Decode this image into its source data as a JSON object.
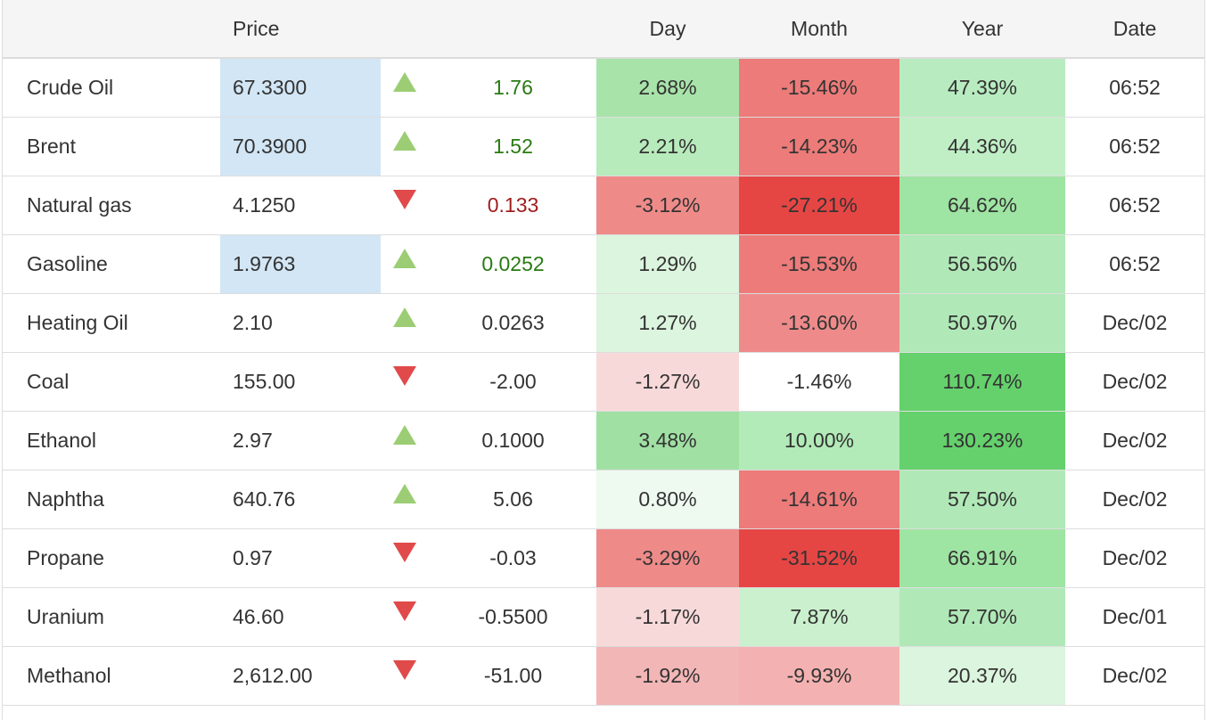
{
  "header": {
    "name": "",
    "price": "Price",
    "arrow": "",
    "change": "",
    "day": "Day",
    "month": "Month",
    "year": "Year",
    "date": "Date"
  },
  "colors": {
    "blue_highlight": "#d2e6f5",
    "up_text": "#2a7a14",
    "down_text": "#a01e1e",
    "up_arrow": "#9ccd74",
    "down_arrow": "#e04a4a"
  },
  "rows": [
    {
      "name": "Crude Oil",
      "price": "67.3300",
      "price_highlight": true,
      "direction": "up",
      "change": "1.76",
      "change_colored": true,
      "day": "2.68%",
      "month": "-15.46%",
      "year": "47.39%",
      "date": "06:52",
      "day_bg": "#a8e3a9",
      "month_bg": "#ec7b79",
      "year_bg": "#b8ecc0"
    },
    {
      "name": "Brent",
      "price": "70.3900",
      "price_highlight": true,
      "direction": "up",
      "change": "1.52",
      "change_colored": true,
      "day": "2.21%",
      "month": "-14.23%",
      "year": "44.36%",
      "date": "06:52",
      "day_bg": "#b8ebbc",
      "month_bg": "#ec7b79",
      "year_bg": "#c0efc6"
    },
    {
      "name": "Natural gas",
      "price": "4.1250",
      "price_highlight": false,
      "direction": "down",
      "change": "0.133",
      "change_colored": true,
      "day": "-3.12%",
      "month": "-27.21%",
      "year": "64.62%",
      "date": "06:52",
      "day_bg": "#ee8b89",
      "month_bg": "#e54644",
      "year_bg": "#9ee4a2"
    },
    {
      "name": "Gasoline",
      "price": "1.9763",
      "price_highlight": true,
      "direction": "up",
      "change": "0.0252",
      "change_colored": true,
      "day": "1.29%",
      "month": "-15.53%",
      "year": "56.56%",
      "date": "06:52",
      "day_bg": "#dcf5de",
      "month_bg": "#ec7b79",
      "year_bg": "#b0e9b7"
    },
    {
      "name": "Heating Oil",
      "price": "2.10",
      "price_highlight": false,
      "direction": "up",
      "change": "0.0263",
      "change_colored": false,
      "day": "1.27%",
      "month": "-13.60%",
      "year": "50.97%",
      "date": "Dec/02",
      "day_bg": "#dcf5de",
      "month_bg": "#ee8b8a",
      "year_bg": "#b0e9b7"
    },
    {
      "name": "Coal",
      "price": "155.00",
      "price_highlight": false,
      "direction": "down",
      "change": "-2.00",
      "change_colored": false,
      "day": "-1.27%",
      "month": "-1.46%",
      "year": "110.74%",
      "date": "Dec/02",
      "day_bg": "#f8d9da",
      "month_bg": "#ffffff",
      "year_bg": "#65d16c"
    },
    {
      "name": "Ethanol",
      "price": "2.97",
      "price_highlight": false,
      "direction": "up",
      "change": "0.1000",
      "change_colored": false,
      "day": "3.48%",
      "month": "10.00%",
      "year": "130.23%",
      "date": "Dec/02",
      "day_bg": "#a0e0a3",
      "month_bg": "#b2eab8",
      "year_bg": "#65d16c"
    },
    {
      "name": "Naphtha",
      "price": "640.76",
      "price_highlight": false,
      "direction": "up",
      "change": "5.06",
      "change_colored": false,
      "day": "0.80%",
      "month": "-14.61%",
      "year": "57.50%",
      "date": "Dec/02",
      "day_bg": "#eef9ef",
      "month_bg": "#ec7b79",
      "year_bg": "#b0e9b7"
    },
    {
      "name": "Propane",
      "price": "0.97",
      "price_highlight": false,
      "direction": "down",
      "change": "-0.03",
      "change_colored": false,
      "day": "-3.29%",
      "month": "-31.52%",
      "year": "66.91%",
      "date": "Dec/02",
      "day_bg": "#ee8b89",
      "month_bg": "#e54644",
      "year_bg": "#9ee4a2"
    },
    {
      "name": "Uranium",
      "price": "46.60",
      "price_highlight": false,
      "direction": "down",
      "change": "-0.5500",
      "change_colored": false,
      "day": "-1.17%",
      "month": "7.87%",
      "year": "57.70%",
      "date": "Dec/01",
      "day_bg": "#f8d9da",
      "month_bg": "#caf0cd",
      "year_bg": "#b0e9b7"
    },
    {
      "name": "Methanol",
      "price": "2,612.00",
      "price_highlight": false,
      "direction": "down",
      "change": "-51.00",
      "change_colored": false,
      "day": "-1.92%",
      "month": "-9.93%",
      "year": "20.37%",
      "date": "Dec/02",
      "day_bg": "#f3b6b6",
      "month_bg": "#f3b2b1",
      "year_bg": "#dcf5de"
    }
  ]
}
